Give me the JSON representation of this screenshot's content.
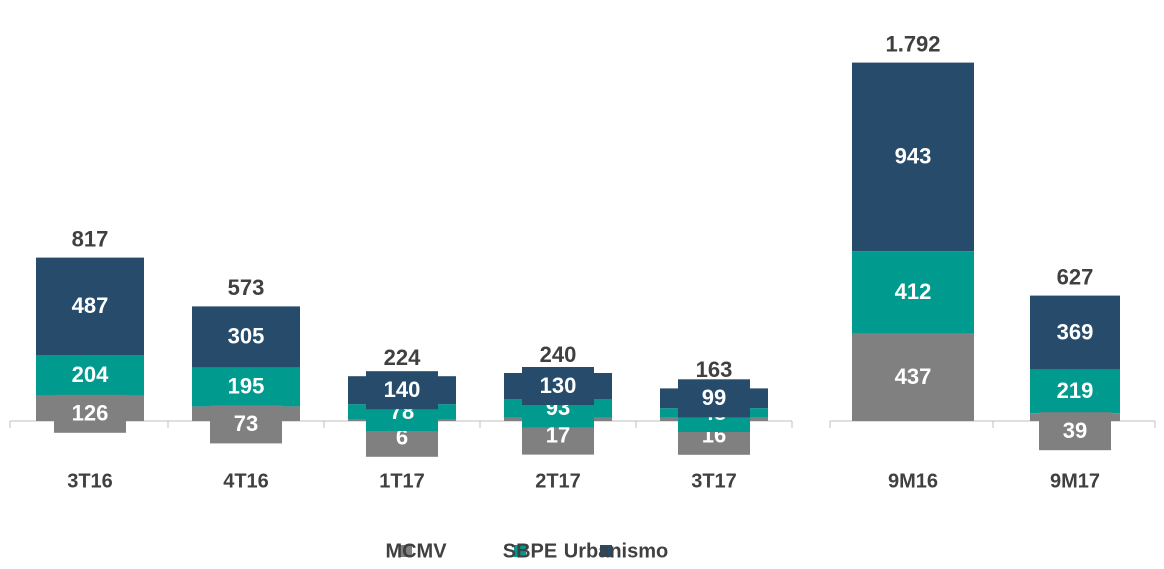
{
  "chart_data": {
    "type": "bar",
    "stacked": true,
    "categories": [
      "3T16",
      "4T16",
      "1T17",
      "2T17",
      "3T17",
      "9M16",
      "9M17"
    ],
    "series": [
      {
        "name": "MCMV",
        "color": "#808080",
        "values": [
          126,
          73,
          6,
          17,
          16,
          437,
          39
        ]
      },
      {
        "name": "SBPE",
        "color": "#009b8e",
        "values": [
          204,
          195,
          78,
          93,
          48,
          412,
          219
        ]
      },
      {
        "name": "Urbanismo",
        "color": "#264b6b",
        "values": [
          487,
          305,
          140,
          130,
          99,
          943,
          369
        ]
      }
    ],
    "totals": {
      "values": [
        817,
        573,
        224,
        240,
        163,
        1792,
        627
      ],
      "value_labels": [
        "817",
        "573",
        "224",
        "240",
        "163",
        "1.792",
        "627"
      ]
    }
  }
}
